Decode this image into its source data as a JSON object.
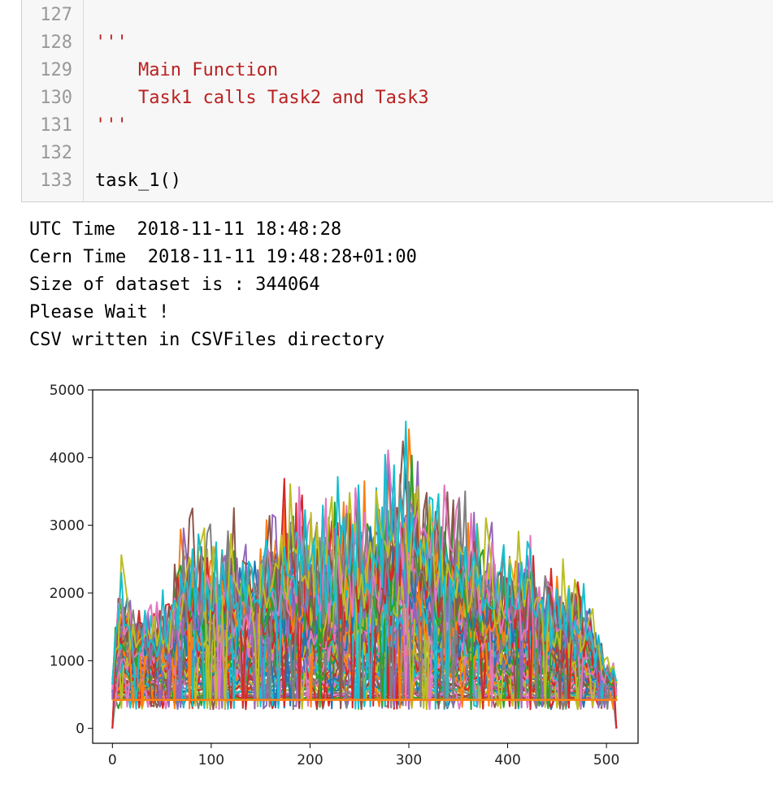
{
  "code_cell": {
    "lines": [
      {
        "num": "127",
        "text": ""
      },
      {
        "num": "128",
        "text": "'''"
      },
      {
        "num": "129",
        "text": "    Main Function"
      },
      {
        "num": "130",
        "text": "    Task1 calls Task2 and Task3"
      },
      {
        "num": "131",
        "text": "'''"
      },
      {
        "num": "132",
        "text": ""
      },
      {
        "num": "133",
        "text": "task_1()"
      }
    ]
  },
  "output": {
    "lines": [
      "UTC Time  2018-11-11 18:48:28",
      "Cern Time  2018-11-11 19:48:28+01:00",
      "Size of dataset is : 344064",
      "Please Wait !",
      "CSV written in CSVFiles directory"
    ]
  },
  "chart_data": {
    "type": "line",
    "title": "",
    "xlabel": "",
    "ylabel": "",
    "xlim": [
      -20,
      532
    ],
    "ylim": [
      -220,
      5000
    ],
    "x_ticks": [
      0,
      100,
      200,
      300,
      400,
      500
    ],
    "y_ticks": [
      0,
      1000,
      2000,
      3000,
      4000,
      5000
    ],
    "grid": false,
    "legend": "none",
    "x_range": [
      0,
      511
    ],
    "envelope": {
      "x": [
        0,
        10,
        20,
        40,
        60,
        70,
        80,
        100,
        120,
        140,
        160,
        180,
        200,
        220,
        240,
        260,
        280,
        295,
        305,
        320,
        340,
        360,
        380,
        400,
        420,
        440,
        460,
        480,
        500,
        511
      ],
      "y": [
        1300,
        2700,
        1900,
        2000,
        2300,
        3200,
        3300,
        3000,
        3300,
        3000,
        3500,
        3800,
        3600,
        3500,
        4150,
        3800,
        4200,
        4750,
        4600,
        4000,
        3800,
        3500,
        3250,
        2600,
        3200,
        2500,
        2500,
        2200,
        1050,
        1050
      ]
    },
    "baseline": 420,
    "colors": [
      "#1f77b4",
      "#ff7f0e",
      "#2ca02c",
      "#d62728",
      "#9467bd",
      "#8c564b",
      "#e377c2",
      "#7f7f7f",
      "#bcbd22",
      "#17becf"
    ]
  }
}
